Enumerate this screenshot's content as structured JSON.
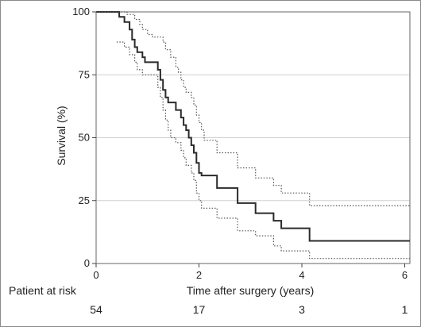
{
  "chart_data": {
    "type": "line",
    "xlabel": "Time after surgery (years)",
    "ylabel": "Survival (%)",
    "xlim": [
      0,
      6.1
    ],
    "ylim": [
      0,
      100
    ],
    "x_ticks": [
      0,
      2,
      4,
      6
    ],
    "y_ticks": [
      0,
      25,
      50,
      75,
      100
    ],
    "grid": "horizontal",
    "series": [
      {
        "style": "solid",
        "points": [
          [
            0,
            100
          ],
          [
            0.45,
            100
          ],
          [
            0.45,
            98
          ],
          [
            0.55,
            98
          ],
          [
            0.55,
            96
          ],
          [
            0.65,
            96
          ],
          [
            0.65,
            93
          ],
          [
            0.7,
            93
          ],
          [
            0.7,
            89
          ],
          [
            0.75,
            89
          ],
          [
            0.75,
            86
          ],
          [
            0.8,
            86
          ],
          [
            0.8,
            84
          ],
          [
            0.9,
            84
          ],
          [
            0.9,
            82
          ],
          [
            0.95,
            82
          ],
          [
            0.95,
            80
          ],
          [
            1.2,
            80
          ],
          [
            1.2,
            77
          ],
          [
            1.25,
            77
          ],
          [
            1.25,
            73
          ],
          [
            1.3,
            73
          ],
          [
            1.3,
            69
          ],
          [
            1.35,
            69
          ],
          [
            1.35,
            66
          ],
          [
            1.4,
            66
          ],
          [
            1.4,
            64
          ],
          [
            1.55,
            64
          ],
          [
            1.55,
            61
          ],
          [
            1.65,
            61
          ],
          [
            1.65,
            58
          ],
          [
            1.7,
            58
          ],
          [
            1.7,
            55
          ],
          [
            1.75,
            55
          ],
          [
            1.75,
            53
          ],
          [
            1.8,
            53
          ],
          [
            1.8,
            50
          ],
          [
            1.85,
            50
          ],
          [
            1.85,
            47
          ],
          [
            1.9,
            47
          ],
          [
            1.9,
            44
          ],
          [
            1.95,
            44
          ],
          [
            1.95,
            40
          ],
          [
            2.0,
            40
          ],
          [
            2.0,
            36
          ],
          [
            2.05,
            36
          ],
          [
            2.05,
            35
          ],
          [
            2.35,
            35
          ],
          [
            2.35,
            30
          ],
          [
            2.75,
            30
          ],
          [
            2.75,
            24
          ],
          [
            3.1,
            24
          ],
          [
            3.1,
            20
          ],
          [
            3.45,
            20
          ],
          [
            3.45,
            17
          ],
          [
            3.6,
            17
          ],
          [
            3.6,
            14
          ],
          [
            4.15,
            14
          ],
          [
            4.15,
            9
          ],
          [
            6.1,
            9
          ]
        ]
      },
      {
        "style": "dotted",
        "points": [
          [
            0,
            100
          ],
          [
            0.6,
            100
          ],
          [
            0.6,
            99
          ],
          [
            0.75,
            99
          ],
          [
            0.75,
            97
          ],
          [
            0.85,
            97
          ],
          [
            0.85,
            95
          ],
          [
            0.9,
            95
          ],
          [
            0.9,
            93
          ],
          [
            1.0,
            93
          ],
          [
            1.0,
            91
          ],
          [
            1.1,
            91
          ],
          [
            1.1,
            90
          ],
          [
            1.3,
            90
          ],
          [
            1.3,
            88
          ],
          [
            1.35,
            88
          ],
          [
            1.35,
            85
          ],
          [
            1.45,
            85
          ],
          [
            1.45,
            82
          ],
          [
            1.55,
            82
          ],
          [
            1.55,
            78
          ],
          [
            1.6,
            78
          ],
          [
            1.6,
            76
          ],
          [
            1.65,
            76
          ],
          [
            1.65,
            73
          ],
          [
            1.7,
            73
          ],
          [
            1.7,
            70
          ],
          [
            1.75,
            70
          ],
          [
            1.75,
            68
          ],
          [
            1.85,
            68
          ],
          [
            1.85,
            66
          ],
          [
            1.9,
            66
          ],
          [
            1.9,
            63
          ],
          [
            1.95,
            63
          ],
          [
            1.95,
            59
          ],
          [
            2.0,
            59
          ],
          [
            2.0,
            56
          ],
          [
            2.05,
            56
          ],
          [
            2.05,
            53
          ],
          [
            2.1,
            53
          ],
          [
            2.1,
            49
          ],
          [
            2.35,
            49
          ],
          [
            2.35,
            44
          ],
          [
            2.75,
            44
          ],
          [
            2.75,
            38
          ],
          [
            3.1,
            38
          ],
          [
            3.1,
            34
          ],
          [
            3.45,
            34
          ],
          [
            3.45,
            31
          ],
          [
            3.6,
            31
          ],
          [
            3.6,
            28
          ],
          [
            4.15,
            28
          ],
          [
            4.15,
            23
          ],
          [
            6.1,
            23
          ]
        ]
      },
      {
        "style": "dotted",
        "points": [
          [
            0.4,
            88
          ],
          [
            0.55,
            88
          ],
          [
            0.55,
            86
          ],
          [
            0.65,
            86
          ],
          [
            0.65,
            83
          ],
          [
            0.75,
            83
          ],
          [
            0.75,
            80
          ],
          [
            0.8,
            80
          ],
          [
            0.8,
            77
          ],
          [
            0.9,
            77
          ],
          [
            0.9,
            75
          ],
          [
            1.2,
            75
          ],
          [
            1.2,
            70
          ],
          [
            1.25,
            70
          ],
          [
            1.25,
            66
          ],
          [
            1.3,
            66
          ],
          [
            1.3,
            61
          ],
          [
            1.35,
            61
          ],
          [
            1.35,
            57
          ],
          [
            1.4,
            57
          ],
          [
            1.4,
            53
          ],
          [
            1.45,
            53
          ],
          [
            1.45,
            50
          ],
          [
            1.55,
            50
          ],
          [
            1.55,
            48
          ],
          [
            1.65,
            48
          ],
          [
            1.65,
            45
          ],
          [
            1.7,
            45
          ],
          [
            1.7,
            42
          ],
          [
            1.75,
            42
          ],
          [
            1.75,
            39
          ],
          [
            1.85,
            39
          ],
          [
            1.85,
            36
          ],
          [
            1.9,
            36
          ],
          [
            1.9,
            33
          ],
          [
            1.95,
            33
          ],
          [
            1.95,
            28
          ],
          [
            2.0,
            28
          ],
          [
            2.0,
            25
          ],
          [
            2.05,
            25
          ],
          [
            2.05,
            22
          ],
          [
            2.35,
            22
          ],
          [
            2.35,
            18
          ],
          [
            2.75,
            18
          ],
          [
            2.75,
            13
          ],
          [
            3.1,
            13
          ],
          [
            3.1,
            11
          ],
          [
            3.45,
            11
          ],
          [
            3.45,
            7
          ],
          [
            3.6,
            7
          ],
          [
            3.6,
            5
          ],
          [
            4.15,
            5
          ],
          [
            4.15,
            2
          ],
          [
            6.1,
            2
          ]
        ]
      }
    ]
  },
  "risk_table": {
    "label": "Patient at risk",
    "at_times": [
      0,
      2,
      4,
      6
    ],
    "counts": [
      "54",
      "17",
      "3",
      "1"
    ]
  }
}
